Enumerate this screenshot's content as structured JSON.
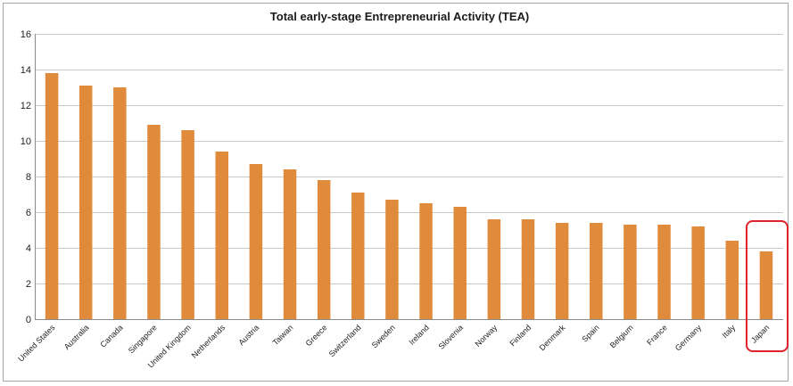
{
  "chart_data": {
    "type": "bar",
    "title": "Total early-stage Entrepreneurial Activity (TEA)",
    "xlabel": "",
    "ylabel": "",
    "ylim": [
      0,
      16
    ],
    "yticks": [
      0,
      2,
      4,
      6,
      8,
      10,
      12,
      14,
      16
    ],
    "grid": true,
    "legend": "none",
    "bar_color": "#E08A3C",
    "highlight": {
      "category": "Japan",
      "color": "#E0202A"
    },
    "categories": [
      "United States",
      "Australia",
      "Canada",
      "Singapore",
      "United Kingdom",
      "Netherlands",
      "Austria",
      "Taiwan",
      "Greece",
      "Switzerland",
      "Sweden",
      "Ireland",
      "Slovenia",
      "Norway",
      "Finland",
      "Denmark",
      "Spain",
      "Belgium",
      "France",
      "Germany",
      "Italy",
      "Japan"
    ],
    "values": [
      13.8,
      13.1,
      13.0,
      10.9,
      10.6,
      9.4,
      8.7,
      8.4,
      7.8,
      7.1,
      6.7,
      6.5,
      6.3,
      5.6,
      5.6,
      5.4,
      5.4,
      5.3,
      5.3,
      5.2,
      4.4,
      3.8
    ]
  }
}
